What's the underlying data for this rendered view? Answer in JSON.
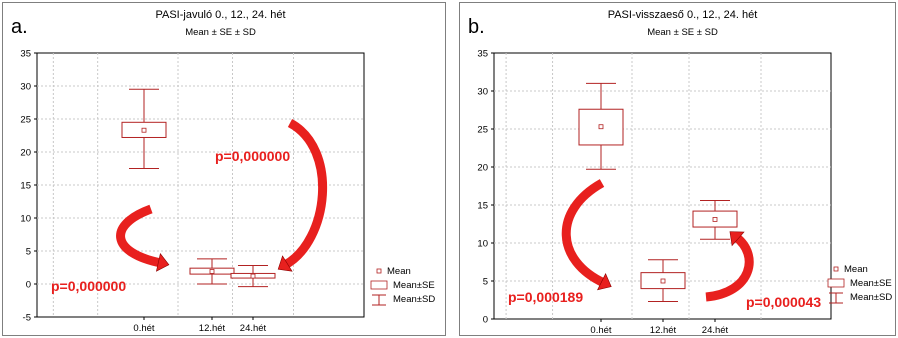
{
  "chart_data": [
    {
      "type": "box",
      "panel_label": "a.",
      "title": "PASI-javuló 0., 12., 24. hét",
      "subtitle": "Mean ± SE ± SD",
      "categories": [
        "0.hét",
        "12.hét",
        "24.hét"
      ],
      "series": [
        {
          "mean": [
            23.3,
            1.9,
            1.2
          ],
          "se_low": [
            22.2,
            1.5,
            0.9
          ],
          "se_high": [
            24.5,
            2.4,
            1.6
          ],
          "sd_low": [
            17.5,
            0.0,
            -0.4
          ],
          "sd_high": [
            29.5,
            3.8,
            2.8
          ]
        }
      ],
      "ylim": [
        -5,
        35
      ],
      "yticks": [
        -5,
        0,
        5,
        10,
        15,
        20,
        25,
        30,
        35
      ],
      "grid": true,
      "legend": {
        "placement": "bottom-right",
        "items": [
          "Mean",
          "Mean±SE",
          "Mean±SD"
        ]
      },
      "annotations": [
        "p=0,000000",
        "p=0,000000"
      ]
    },
    {
      "type": "box",
      "panel_label": "b.",
      "title": "PASI-visszaeső 0., 12., 24. hét",
      "subtitle": "Mean ± SE ± SD",
      "categories": [
        "0.hét",
        "12.hét",
        "24.hét"
      ],
      "series": [
        {
          "mean": [
            25.3,
            5.0,
            13.1
          ],
          "se_low": [
            22.9,
            4.0,
            12.1
          ],
          "se_high": [
            27.6,
            6.1,
            14.2
          ],
          "sd_low": [
            19.7,
            2.3,
            10.5
          ],
          "sd_high": [
            31.0,
            7.8,
            15.6
          ]
        }
      ],
      "ylim": [
        0,
        35
      ],
      "yticks": [
        0,
        5,
        10,
        15,
        20,
        25,
        30,
        35
      ],
      "grid": true,
      "legend": {
        "placement": "bottom-right",
        "items": [
          "Mean",
          "Mean±SE",
          "Mean±SD"
        ]
      },
      "annotations": [
        "p=0,000189",
        "p=0,000043"
      ]
    }
  ],
  "colors": {
    "marks": "#b22222",
    "arrow": "#e8201e",
    "grid": "#c8c8c8"
  }
}
